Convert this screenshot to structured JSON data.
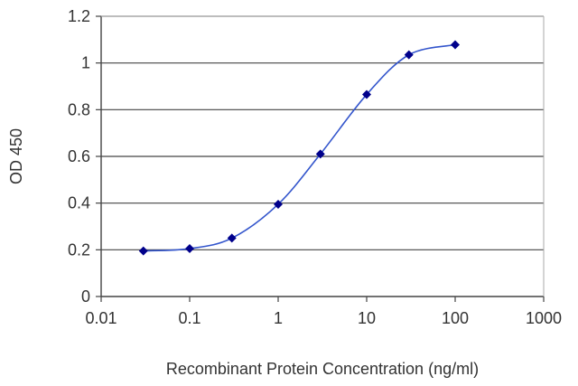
{
  "chart_data": {
    "type": "scatter",
    "xlabel": "Recombinant Protein Concentration (ng/ml)",
    "ylabel": "OD 450",
    "x_scale": "log",
    "xlim": [
      0.01,
      1000
    ],
    "ylim": [
      0,
      1.2
    ],
    "x_ticks": [
      "0.01",
      "0.1",
      "1",
      "10",
      "100",
      "1000"
    ],
    "y_ticks": [
      "0",
      "0.2",
      "0.4",
      "0.6",
      "0.8",
      "1",
      "1.2"
    ],
    "grid": "horizontal",
    "series": [
      {
        "x": [
          0.03,
          0.1,
          0.3,
          1,
          3,
          10,
          30,
          100
        ],
        "y": [
          0.195,
          0.205,
          0.25,
          0.395,
          0.61,
          0.865,
          1.035,
          1.078
        ],
        "color": "#00008B",
        "curve": "smooth"
      }
    ]
  }
}
